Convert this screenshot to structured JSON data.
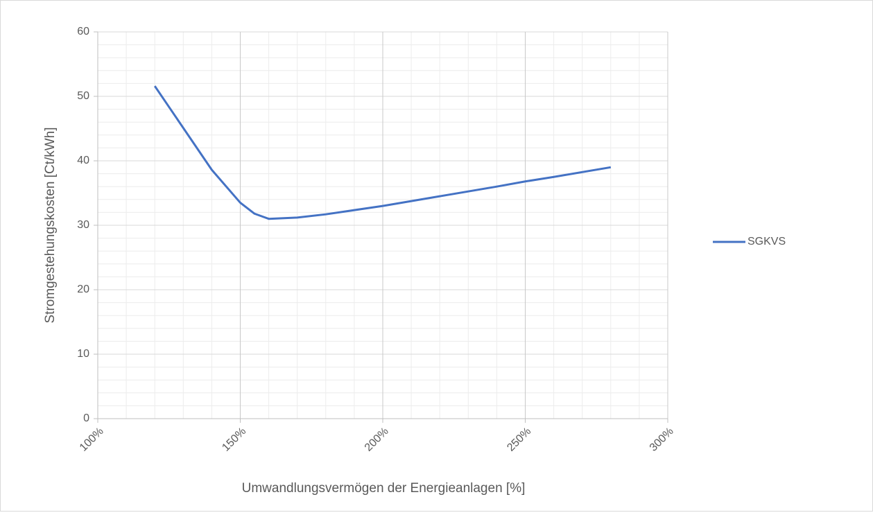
{
  "chart_data": {
    "type": "line",
    "x_label": "Umwandlungsvermögen der Energieanlagen [%]",
    "y_label": "Stromgestehungskosten [Ct/kWh]",
    "x": [
      120,
      140,
      150,
      155,
      160,
      170,
      180,
      200,
      220,
      240,
      250,
      260,
      280
    ],
    "series": [
      {
        "name": "SGKVS",
        "color": "#4472c4",
        "values": [
          51.6,
          38.6,
          33.5,
          31.8,
          31.0,
          31.2,
          31.7,
          33.0,
          34.5,
          36.0,
          36.8,
          37.5,
          39.0
        ]
      }
    ],
    "xlim": [
      100,
      300
    ],
    "xticks": [
      {
        "value": 100,
        "label": "100%"
      },
      {
        "value": 150,
        "label": "150%"
      },
      {
        "value": 200,
        "label": "200%"
      },
      {
        "value": 250,
        "label": "250%"
      },
      {
        "value": 300,
        "label": "300%"
      }
    ],
    "ylim": [
      0,
      60
    ],
    "yticks": [
      0,
      10,
      20,
      30,
      40,
      50,
      60
    ],
    "grid": true,
    "minor_grid": true,
    "legend": "right"
  }
}
